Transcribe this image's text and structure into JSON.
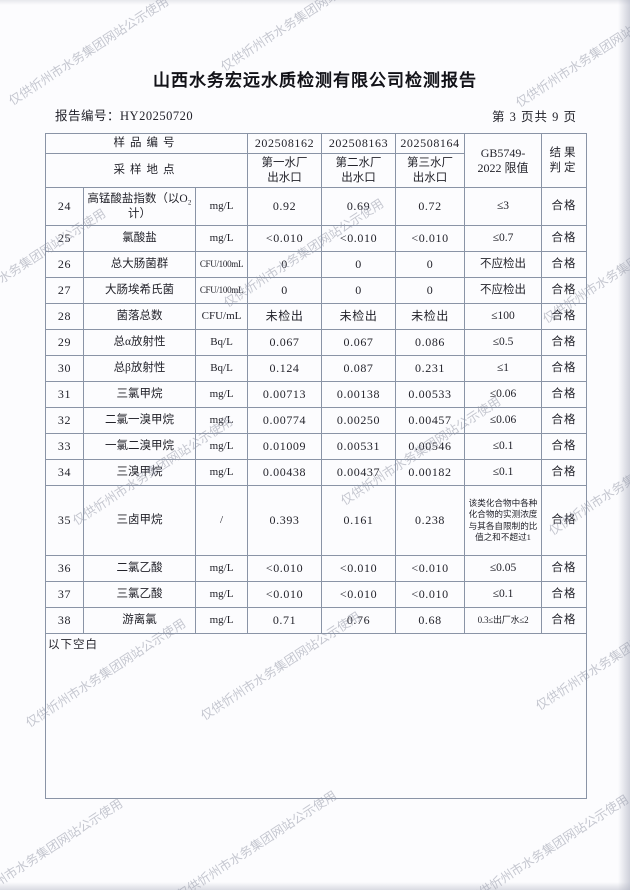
{
  "watermark": {
    "text": "仅供忻州市水务集团网站公示使用"
  },
  "header": {
    "title": "山西水务宏远水质检测有限公司检测报告",
    "report_no_label": "报告编号：",
    "report_no": "HY20250720",
    "page_info": "第 3 页共 9 页"
  },
  "table": {
    "head": {
      "sample_no_label": "样品编号",
      "location_label": "采样地点",
      "sample_ids": [
        "202508162",
        "202508163",
        "202508164"
      ],
      "locations": [
        {
          "l1": "第一水厂",
          "l2": "出水口"
        },
        {
          "l1": "第二水厂",
          "l2": "出水口"
        },
        {
          "l1": "第三水厂",
          "l2": "出水口"
        }
      ],
      "standard_lines": [
        "GB5749-",
        "2022 限值"
      ],
      "result_lines": [
        "结果",
        "判定"
      ]
    },
    "rows": [
      {
        "no": "24",
        "name": "高锰酸盐指数（以O₂计）",
        "unit": "mg/L",
        "v": [
          "0.92",
          "0.69",
          "0.72"
        ],
        "limit": "≤3",
        "result": "合格"
      },
      {
        "no": "25",
        "name": "氯酸盐",
        "unit": "mg/L",
        "v": [
          "<0.010",
          "<0.010",
          "<0.010"
        ],
        "limit": "≤0.7",
        "result": "合格"
      },
      {
        "no": "26",
        "name": "总大肠菌群",
        "unit": "CFU/100mL",
        "v": [
          "0",
          "0",
          "0"
        ],
        "limit": "不应检出",
        "result": "合格"
      },
      {
        "no": "27",
        "name": "大肠埃希氏菌",
        "unit": "CFU/100mL",
        "v": [
          "0",
          "0",
          "0"
        ],
        "limit": "不应检出",
        "result": "合格"
      },
      {
        "no": "28",
        "name": "菌落总数",
        "unit": "CFU/mL",
        "v": [
          "未检出",
          "未检出",
          "未检出"
        ],
        "limit": "≤100",
        "result": "合格"
      },
      {
        "no": "29",
        "name": "总α放射性",
        "unit": "Bq/L",
        "v": [
          "0.067",
          "0.067",
          "0.086"
        ],
        "limit": "≤0.5",
        "result": "合格"
      },
      {
        "no": "30",
        "name": "总β放射性",
        "unit": "Bq/L",
        "v": [
          "0.124",
          "0.087",
          "0.231"
        ],
        "limit": "≤1",
        "result": "合格"
      },
      {
        "no": "31",
        "name": "三氯甲烷",
        "unit": "mg/L",
        "v": [
          "0.00713",
          "0.00138",
          "0.00533"
        ],
        "limit": "≤0.06",
        "result": "合格"
      },
      {
        "no": "32",
        "name": "二氯一溴甲烷",
        "unit": "mg/L",
        "v": [
          "0.00774",
          "0.00250",
          "0.00457"
        ],
        "limit": "≤0.06",
        "result": "合格"
      },
      {
        "no": "33",
        "name": "一氯二溴甲烷",
        "unit": "mg/L",
        "v": [
          "0.01009",
          "0.00531",
          "0.00546"
        ],
        "limit": "≤0.1",
        "result": "合格"
      },
      {
        "no": "34",
        "name": "三溴甲烷",
        "unit": "mg/L",
        "v": [
          "0.00438",
          "0.00437",
          "0.00182"
        ],
        "limit": "≤0.1",
        "result": "合格"
      },
      {
        "no": "35",
        "name": "三卤甲烷",
        "unit": "/",
        "v": [
          "0.393",
          "0.161",
          "0.238"
        ],
        "limit": "该类化合物中各种化合物的实测浓度与其各自限制的比值之和不超过1",
        "result": "合格"
      },
      {
        "no": "36",
        "name": "二氯乙酸",
        "unit": "mg/L",
        "v": [
          "<0.010",
          "<0.010",
          "<0.010"
        ],
        "limit": "≤0.05",
        "result": "合格"
      },
      {
        "no": "37",
        "name": "三氯乙酸",
        "unit": "mg/L",
        "v": [
          "<0.010",
          "<0.010",
          "<0.010"
        ],
        "limit": "≤0.1",
        "result": "合格"
      },
      {
        "no": "38",
        "name": "游离氯",
        "unit": "mg/L",
        "v": [
          "0.71",
          "0.76",
          "0.68"
        ],
        "limit": "0.3≤出厂水≤2",
        "result": "合格"
      }
    ],
    "footer_note": "以下空白"
  }
}
